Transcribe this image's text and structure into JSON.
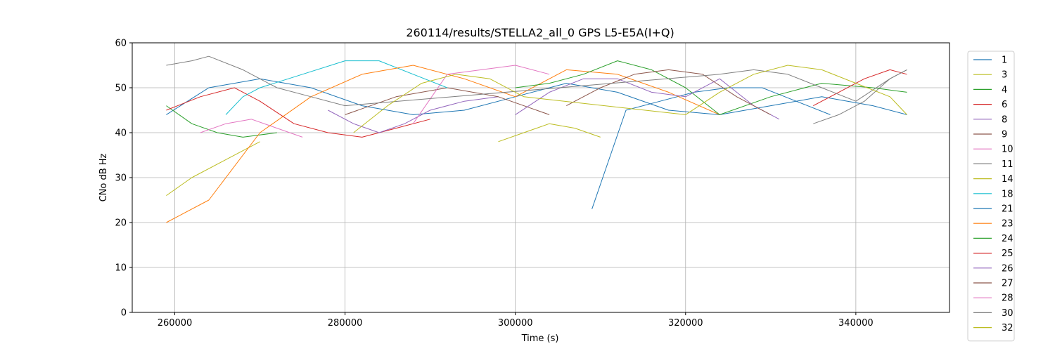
{
  "chart_data": {
    "type": "line",
    "title": "260114/results/STELLA2_all_0 GPS L5-E5A(I+Q)",
    "xlabel": "Time (s)",
    "ylabel": "CNo dB Hz",
    "xlim": [
      255000,
      351000
    ],
    "ylim": [
      0,
      60
    ],
    "x_ticks": [
      260000,
      280000,
      300000,
      320000,
      340000
    ],
    "x_tick_labels": [
      "260000",
      "280000",
      "300000",
      "320000",
      "340000"
    ],
    "y_ticks": [
      0,
      10,
      20,
      30,
      40,
      50,
      60
    ],
    "y_tick_labels": [
      "0",
      "10",
      "20",
      "30",
      "40",
      "50",
      "60"
    ],
    "grid": true,
    "legend_position": "outside-right",
    "series": [
      {
        "name": "1",
        "color": "#1f77b4",
        "x": [
          259000,
          264000,
          270000,
          276000,
          282000,
          288000,
          294000,
          300000,
          306000,
          312000,
          318000,
          324000,
          330000,
          336000,
          342000,
          346000
        ],
        "y": [
          44,
          50,
          52,
          50,
          46,
          44,
          45,
          48,
          51,
          49,
          45,
          44,
          46,
          48,
          46,
          44
        ]
      },
      {
        "name": "3",
        "color": "#bcbd22",
        "x": [
          259000,
          262000,
          266000,
          270000
        ],
        "y": [
          26,
          30,
          34,
          38
        ]
      },
      {
        "name": "4",
        "color": "#2ca02c",
        "x": [
          259000,
          262000,
          265000,
          268000,
          272000
        ],
        "y": [
          46,
          42,
          40,
          39,
          40
        ]
      },
      {
        "name": "6",
        "color": "#d62728",
        "x": [
          259000,
          263000,
          267000,
          270000,
          274000,
          278000,
          282000,
          286000,
          290000
        ],
        "y": [
          45,
          48,
          50,
          47,
          42,
          40,
          39,
          41,
          43
        ]
      },
      {
        "name": "8",
        "color": "#9467bd",
        "x": [
          278000,
          281000,
          284000,
          287000,
          290000,
          294000,
          298000
        ],
        "y": [
          45,
          42,
          40,
          42,
          45,
          47,
          48
        ]
      },
      {
        "name": "9",
        "color": "#8c564b",
        "x": [
          280000,
          286000,
          292000,
          298000,
          304000
        ],
        "y": [
          44,
          48,
          50,
          48,
          44
        ]
      },
      {
        "name": "10",
        "color": "#e377c2",
        "x": [
          263000,
          266000,
          269000,
          272000,
          275000
        ],
        "y": [
          40,
          42,
          43,
          41,
          39
        ]
      },
      {
        "name": "11",
        "color": "#7f7f7f",
        "x": [
          335000,
          338000,
          341000,
          344000,
          346000
        ],
        "y": [
          42,
          44,
          47,
          52,
          54
        ]
      },
      {
        "name": "14",
        "color": "#bcbd22",
        "x": [
          298000,
          301000,
          304000,
          307000,
          310000
        ],
        "y": [
          38,
          40,
          42,
          41,
          39
        ]
      },
      {
        "name": "18",
        "color": "#17becf",
        "x": [
          266000,
          268000,
          270000,
          275000,
          280000,
          284000,
          288000,
          292000
        ],
        "y": [
          44,
          48,
          50,
          53,
          56,
          56,
          53,
          50
        ]
      },
      {
        "name": "21",
        "color": "#1f77b4",
        "x": [
          309000,
          313000,
          317000,
          321000,
          325000,
          329000,
          333000,
          337000
        ],
        "y": [
          23,
          45,
          47,
          49,
          50,
          50,
          47,
          44
        ]
      },
      {
        "name": "23",
        "color": "#ff7f0e",
        "x": [
          259000,
          264000,
          270000,
          276000,
          282000,
          288000,
          294000,
          300000,
          306000,
          312000,
          318000,
          324000
        ],
        "y": [
          20,
          25,
          40,
          48,
          53,
          55,
          52,
          48,
          54,
          53,
          49,
          44
        ]
      },
      {
        "name": "24",
        "color": "#2ca02c",
        "x": [
          300000,
          304000,
          308000,
          312000,
          316000,
          320000,
          324000,
          330000,
          336000,
          342000,
          346000
        ],
        "y": [
          50,
          51,
          53,
          56,
          54,
          50,
          44,
          48,
          51,
          50,
          49
        ]
      },
      {
        "name": "25",
        "color": "#d62728",
        "x": [
          335000,
          338000,
          341000,
          344000,
          346000
        ],
        "y": [
          46,
          49,
          52,
          54,
          53
        ]
      },
      {
        "name": "26",
        "color": "#9467bd",
        "x": [
          300000,
          304000,
          308000,
          312000,
          316000,
          320000,
          324000,
          328000,
          331000
        ],
        "y": [
          44,
          49,
          52,
          52,
          49,
          48,
          52,
          46,
          43
        ]
      },
      {
        "name": "27",
        "color": "#8c564b",
        "x": [
          306000,
          310000,
          314000,
          318000,
          322000,
          326000,
          330000
        ],
        "y": [
          46,
          50,
          53,
          54,
          53,
          48,
          44
        ]
      },
      {
        "name": "28",
        "color": "#e377c2",
        "x": [
          288000,
          292000,
          296000,
          300000,
          304000
        ],
        "y": [
          42,
          53,
          54,
          55,
          53
        ]
      },
      {
        "name": "30",
        "color": "#7f7f7f",
        "x": [
          259000,
          262000,
          264000,
          268000,
          272000,
          276000,
          280000,
          324000,
          328000,
          332000,
          336000,
          340000,
          344000,
          346000
        ],
        "y": [
          55,
          56,
          57,
          54,
          50,
          48,
          46,
          53,
          54,
          53,
          50,
          47,
          52,
          54
        ]
      },
      {
        "name": "32",
        "color": "#bcbd22",
        "x": [
          281000,
          285000,
          289000,
          293000,
          297000,
          301000,
          320000,
          324000,
          328000,
          332000,
          336000,
          340000,
          344000,
          346000
        ],
        "y": [
          40,
          46,
          51,
          53,
          52,
          48,
          44,
          49,
          53,
          55,
          54,
          51,
          48,
          44
        ]
      }
    ]
  }
}
